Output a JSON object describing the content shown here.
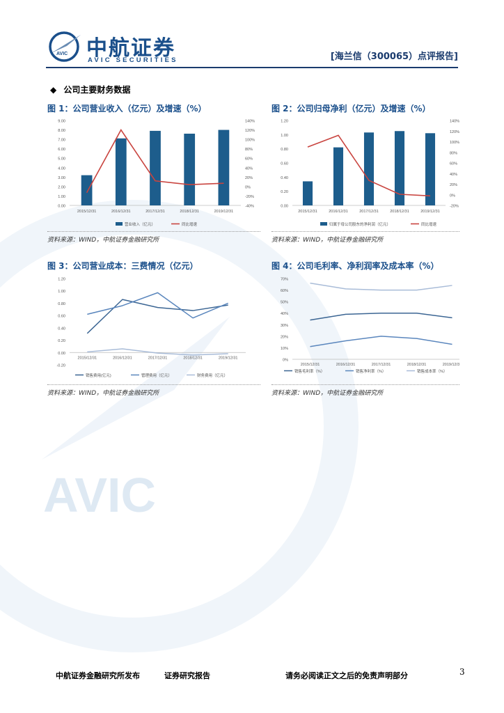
{
  "header": {
    "logo_cn": "中航证券",
    "logo_en": "AVIC SECURITIES",
    "logo_badge": "AVIC",
    "report_title": "[海兰信（300065）点评报告]"
  },
  "section_title": "公司主要财务数据",
  "section_bullet": "◆",
  "watermark_text": "AVIC",
  "colors": {
    "bar": "#1d5d8c",
    "red": "#c9443f",
    "dark": "#3b6593",
    "mid": "#5a86bd",
    "light": "#a9bcd8"
  },
  "figures": [
    {
      "title": "图 1：公司营业收入（亿元）及增速（%）",
      "source": "资料来源：WIND，中航证券金融研究所"
    },
    {
      "title": "图 2：公司归母净利（亿元）及增速（%）",
      "source": "资料来源：WIND，中航证券金融研究所"
    },
    {
      "title": "图 3：公司营业成本：三费情况（亿元）",
      "source": "资料来源：WIND，中航证券金融研究所"
    },
    {
      "title": "图 4：公司毛利率、净利润率及成本率（%）",
      "source": "资料来源：WIND，中航证券金融研究所"
    }
  ],
  "chart_data": [
    {
      "type": "bar",
      "categories": [
        "2015/12/31",
        "2016/12/31",
        "2017/12/31",
        "2018/12/31",
        "2019/12/31"
      ],
      "series": [
        {
          "name": "营业收入（亿元）",
          "type": "bar",
          "axis": "left",
          "values": [
            3.2,
            7.1,
            7.9,
            7.6,
            8.0
          ]
        },
        {
          "name": "同比增速",
          "type": "line",
          "axis": "right",
          "values": [
            -0.13,
            1.2,
            0.12,
            0.04,
            0.07
          ]
        }
      ],
      "y_left": {
        "min": 0,
        "max": 9,
        "step": 1,
        "labels": [
          "0.00",
          "1.00",
          "2.00",
          "3.00",
          "4.00",
          "5.00",
          "6.00",
          "7.00",
          "8.00",
          "9.00"
        ]
      },
      "y_right": {
        "min": -0.4,
        "max": 1.4,
        "step": 0.2,
        "labels": [
          "-40%",
          "-20%",
          "0%",
          "20%",
          "40%",
          "60%",
          "80%",
          "100%",
          "120%",
          "140%"
        ]
      },
      "legend": [
        "营业收入（亿元）",
        "同比增速"
      ]
    },
    {
      "type": "bar",
      "categories": [
        "2015/12/31",
        "2016/12/31",
        "2017/12/31",
        "2018/12/31",
        "2019/12/31"
      ],
      "series": [
        {
          "name": "归属于母公司股东的净利润（亿元）",
          "type": "bar",
          "axis": "left",
          "values": [
            0.34,
            0.82,
            1.03,
            1.05,
            1.02
          ]
        },
        {
          "name": "同比增速",
          "type": "line",
          "axis": "right",
          "values": [
            0.9,
            1.12,
            0.27,
            0.01,
            -0.02
          ]
        }
      ],
      "y_left": {
        "min": 0,
        "max": 1.2,
        "step": 0.2,
        "labels": [
          "0.00",
          "0.20",
          "0.40",
          "0.60",
          "0.80",
          "1.00",
          "1.20"
        ]
      },
      "y_right": {
        "min": -0.2,
        "max": 1.4,
        "step": 0.2,
        "labels": [
          "-20%",
          "0%",
          "20%",
          "40%",
          "60%",
          "80%",
          "100%",
          "120%",
          "140%"
        ]
      },
      "legend": [
        "归属于母公司股东的净利润（亿元）",
        "同比增速"
      ]
    },
    {
      "type": "line",
      "categories": [
        "2015/12/31",
        "2016/12/31",
        "2017/12/31",
        "2018/12/31",
        "2019/12/31"
      ],
      "series": [
        {
          "name": "销售费用(亿元)",
          "values": [
            0.31,
            0.86,
            0.73,
            0.68,
            0.77
          ]
        },
        {
          "name": "管理费用（亿元）",
          "values": [
            0.62,
            0.76,
            0.97,
            0.56,
            0.8
          ]
        },
        {
          "name": "财务费用（亿元）",
          "values": [
            0.01,
            0.06,
            -0.01,
            -0.04,
            -0.02
          ]
        }
      ],
      "y": {
        "min": -0.2,
        "max": 1.2,
        "step": 0.2,
        "labels": [
          "-0.20",
          "0.00",
          "0.20",
          "0.40",
          "0.60",
          "0.80",
          "1.00",
          "1.20"
        ]
      },
      "legend": [
        "销售费用(亿元)",
        "管理费用（亿元）",
        "财务费用（亿元）"
      ]
    },
    {
      "type": "line",
      "categories": [
        "2015/12/31",
        "2016/12/31",
        "2017/12/31",
        "2018/12/31",
        "2019/12/31"
      ],
      "series": [
        {
          "name": "销售毛利率（%）",
          "values": [
            0.34,
            0.39,
            0.4,
            0.4,
            0.36
          ]
        },
        {
          "name": "销售净利率（%）",
          "values": [
            0.11,
            0.16,
            0.2,
            0.18,
            0.13
          ]
        },
        {
          "name": "销售成本率（%）",
          "values": [
            0.66,
            0.61,
            0.6,
            0.6,
            0.64
          ]
        }
      ],
      "y": {
        "min": 0,
        "max": 0.7,
        "step": 0.1,
        "labels": [
          "0%",
          "10%",
          "20%",
          "30%",
          "40%",
          "50%",
          "60%",
          "70%"
        ]
      },
      "legend": [
        "销售毛利率（%）",
        "销售净利率（%）",
        "销售成本率（%）"
      ]
    }
  ],
  "footer": {
    "left": "中航证券金融研究所发布",
    "middle": "证券研究报告",
    "right": "请务必阅读正文之后的免责声明部分",
    "page": "3"
  }
}
